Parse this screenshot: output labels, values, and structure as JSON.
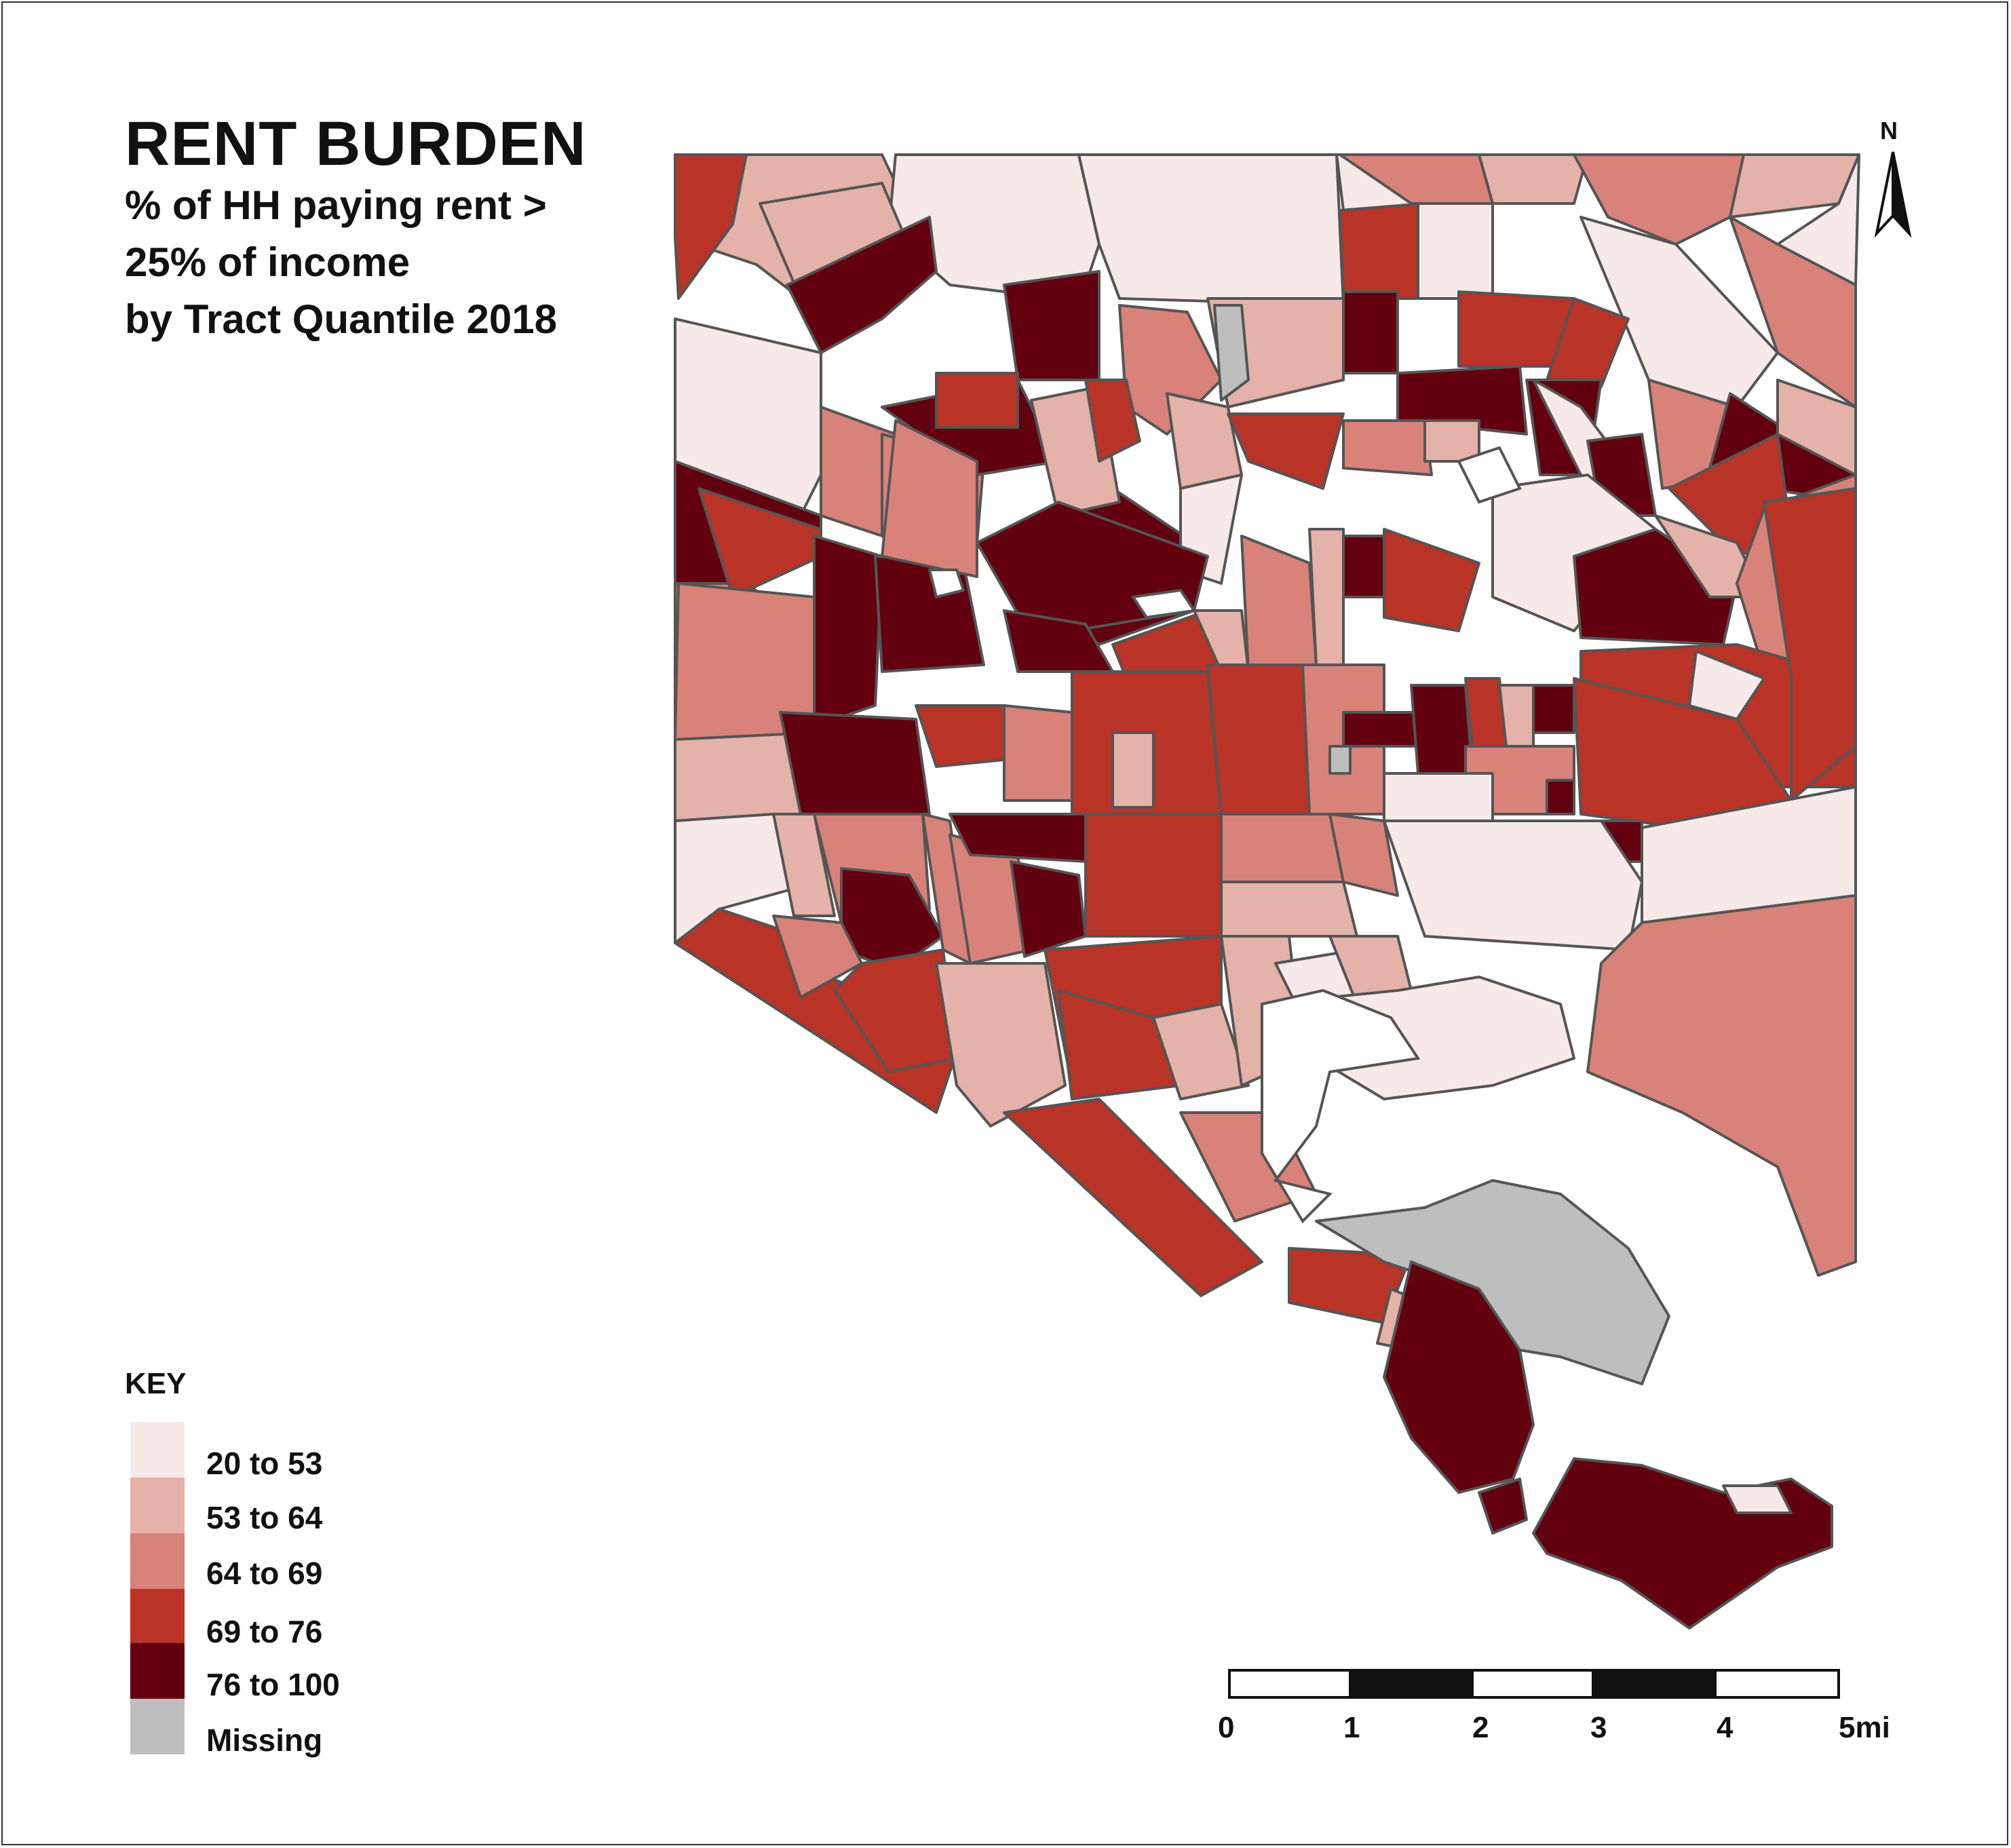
{
  "title": "RENT BURDEN",
  "subtitle_lines": [
    "% of HH paying rent >",
    "25% of income",
    "by Tract Quantile 2018"
  ],
  "key": {
    "title": "KEY",
    "items": [
      {
        "label": "20 to 53",
        "color": "#f6e9e7"
      },
      {
        "label": "53 to 64",
        "color": "#e4b2a8"
      },
      {
        "label": "64 to 69",
        "color": "#d8827a"
      },
      {
        "label": "69 to 76",
        "color": "#b93326"
      },
      {
        "label": "76 to 100",
        "color": "#62000f"
      },
      {
        "label": "Missing",
        "color": "#bebebe"
      }
    ]
  },
  "north_arrow": {
    "label": "N"
  },
  "scale_bar": {
    "ticks": [
      "0",
      "1",
      "2",
      "3",
      "4",
      "5mi"
    ]
  },
  "colors": {
    "outline": "#555555",
    "frame": "#333333"
  }
}
